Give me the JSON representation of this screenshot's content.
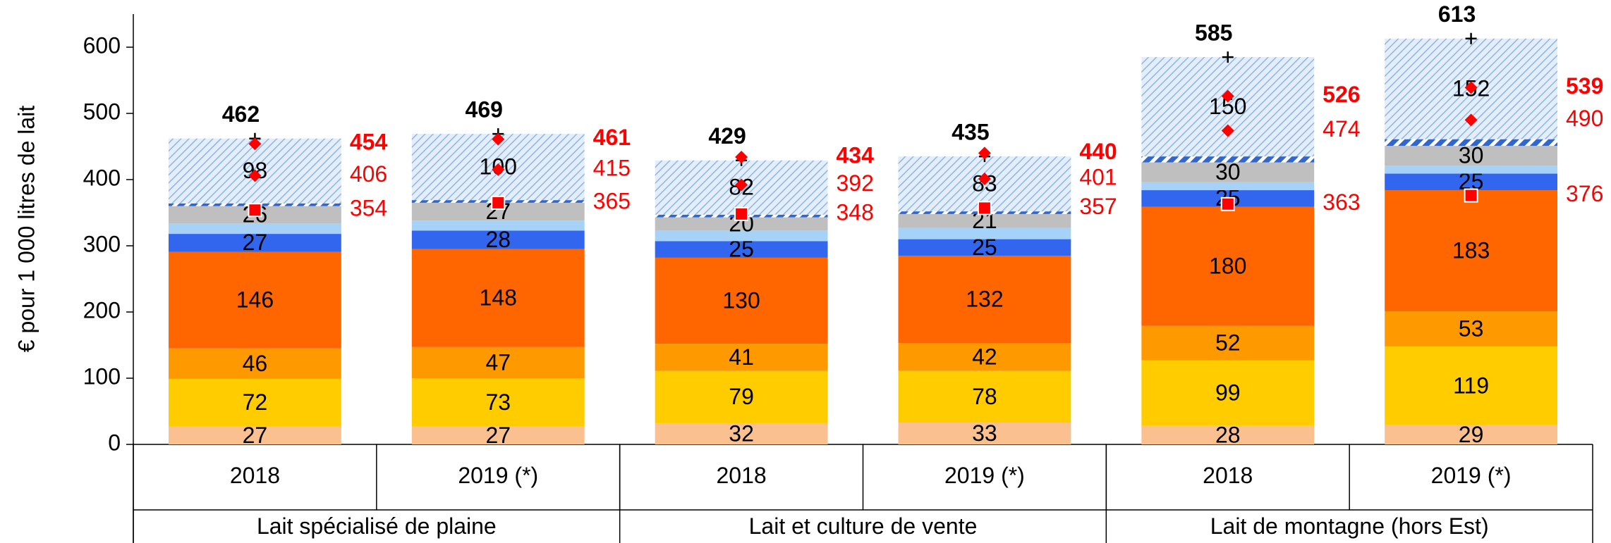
{
  "chart_data": {
    "type": "stacked_bar",
    "y_label": "€ pour 1 000 litres de lait",
    "ylim": [
      0,
      650
    ],
    "yticks": [
      0,
      100,
      200,
      300,
      400,
      500,
      600
    ],
    "categories": [
      "2018",
      "2019 (*)",
      "2018",
      "2019 (*)",
      "2018",
      "2019 (*)"
    ],
    "groups": [
      {
        "label": "Lait spécialisé de plaine",
        "span": 2
      },
      {
        "label": "Lait et culture de vente",
        "span": 2
      },
      {
        "label": "Lait de montagne (hors Est)",
        "span": 2
      }
    ],
    "series": [
      {
        "color": "#fac090",
        "values": [
          27,
          27,
          32,
          33,
          28,
          29
        ]
      },
      {
        "color": "#ffcc00",
        "values": [
          72,
          73,
          79,
          78,
          99,
          119
        ]
      },
      {
        "color": "#ff9900",
        "values": [
          46,
          47,
          41,
          42,
          52,
          53
        ]
      },
      {
        "color": "#ff6600",
        "values": [
          146,
          148,
          130,
          132,
          180,
          183
        ]
      },
      {
        "color": "#3366ee",
        "values": [
          27,
          28,
          25,
          25,
          25,
          25
        ]
      },
      {
        "color": "#a6d2f7",
        "values": [
          16,
          15,
          16,
          17,
          12,
          12
        ],
        "show_labels": false
      },
      {
        "color": "#bfbfbf",
        "values": [
          26,
          27,
          20,
          21,
          30,
          30
        ]
      },
      {
        "color": "#3366cc",
        "values": [
          4,
          4,
          4,
          4,
          9,
          10
        ],
        "pattern": "dashed",
        "show_labels": false
      },
      {
        "color": "#8db6e6",
        "values": [
          98,
          100,
          82,
          83,
          150,
          152
        ],
        "pattern": "hatch"
      }
    ],
    "markers": [
      {
        "marker": "plus",
        "color": "#000000",
        "values": [
          462,
          469,
          429,
          435,
          585,
          613
        ],
        "label_position": "above",
        "bold": true
      },
      {
        "marker": "diamond",
        "color": "#ff0000",
        "values": [
          454,
          461,
          434,
          440,
          526,
          539
        ],
        "label_position": "right",
        "bold": true
      },
      {
        "marker": "diamond",
        "color": "#ff0000",
        "values": [
          406,
          415,
          392,
          401,
          474,
          490
        ],
        "label_position": "right",
        "bold": false
      },
      {
        "marker": "square",
        "color": "#ff0000",
        "values": [
          354,
          365,
          348,
          357,
          363,
          376
        ],
        "label_position": "right",
        "bold": false
      }
    ]
  }
}
